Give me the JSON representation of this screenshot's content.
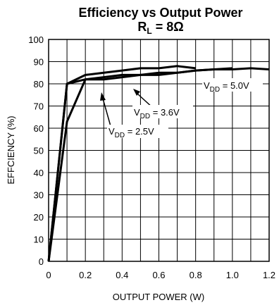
{
  "chart_data": {
    "type": "line",
    "title": "Efficiency vs Output Power",
    "subtitle": {
      "main": "R",
      "sub": "L",
      "rest": " = 8Ω"
    },
    "xlabel": "OUTPUT POWER (W)",
    "ylabel": "EFFCIENCY (%)",
    "xlim": [
      0,
      1.2
    ],
    "ylim": [
      0,
      100
    ],
    "x_ticks": [
      0,
      0.2,
      0.4,
      0.6,
      0.8,
      1.0,
      1.2
    ],
    "x_tick_labels": [
      "0",
      "0.2",
      "0.4",
      "0.6",
      "0.8",
      "1.0",
      "1.2"
    ],
    "y_ticks": [
      0,
      10,
      20,
      30,
      40,
      50,
      60,
      70,
      80,
      90,
      100
    ],
    "y_tick_labels": [
      "0",
      "10",
      "20",
      "30",
      "40",
      "50",
      "60",
      "70",
      "80",
      "90",
      "100"
    ],
    "x_grid": [
      0,
      0.1,
      0.2,
      0.3,
      0.4,
      0.5,
      0.6,
      0.7,
      0.8,
      0.9,
      1.0,
      1.1,
      1.2
    ],
    "y_grid": [
      0,
      10,
      20,
      30,
      40,
      50,
      60,
      70,
      80,
      90,
      100
    ],
    "grid": true,
    "series": [
      {
        "name": "VDD = 2.5V",
        "x": [
          0,
          0.1,
          0.2,
          0.3,
          0.4,
          0.5,
          0.6,
          0.7,
          0.8
        ],
        "y": [
          0,
          80,
          84,
          85,
          86,
          87,
          87,
          88,
          87
        ]
      },
      {
        "name": "VDD = 3.6V",
        "x": [
          0,
          0.1,
          0.2,
          0.3,
          0.4,
          0.5,
          0.6,
          0.7,
          0.8,
          0.9,
          1.0
        ],
        "y": [
          0,
          63,
          82,
          82,
          83,
          84,
          84,
          85,
          86,
          86.5,
          87
        ]
      },
      {
        "name": "VDD = 5.0V",
        "x": [
          0,
          0.1,
          0.2,
          0.3,
          0.4,
          0.5,
          0.6,
          0.7,
          0.8,
          0.9,
          1.0,
          1.1,
          1.2
        ],
        "y": [
          0,
          80,
          82,
          83,
          84,
          84,
          85,
          85,
          86,
          86.5,
          86.5,
          87,
          86.5
        ]
      }
    ],
    "annotations": [
      {
        "main": "V",
        "sub": "DD",
        "rest": " = 5.0V"
      },
      {
        "main": "V",
        "sub": "DD",
        "rest": " = 3.6V"
      },
      {
        "main": "V",
        "sub": "DD",
        "rest": " = 2.5V"
      }
    ],
    "colors": {
      "line": "#000000",
      "grid": "#000000",
      "background": "#ffffff"
    }
  }
}
